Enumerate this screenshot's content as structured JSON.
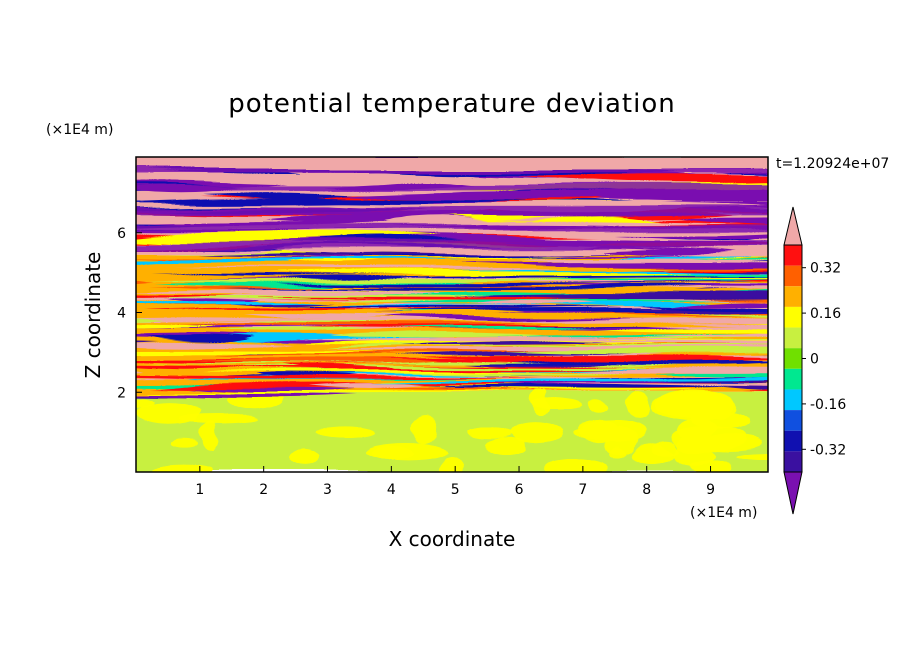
{
  "chart_data": {
    "type": "heatmap",
    "title": "potential temperature deviation",
    "time_label": "t=1.20924e+07",
    "xlabel": "X coordinate",
    "ylabel": "Z coordinate",
    "x_unit": "(×1E4 m)",
    "y_unit": "(×1E4 m)",
    "xlim": [
      0,
      9.9
    ],
    "ylim": [
      0,
      7.9
    ],
    "x_ticks": [
      "1",
      "2",
      "3",
      "4",
      "5",
      "6",
      "7",
      "8",
      "9"
    ],
    "y_ticks": [
      "2",
      "4",
      "6"
    ],
    "colorbar": {
      "levels": [
        -0.48,
        -0.4,
        -0.32,
        -0.24,
        -0.16,
        -0.08,
        0,
        0.08,
        0.16,
        0.24,
        0.32,
        0.4,
        0.48
      ],
      "tick_labels": [
        "-0.32",
        "-0.16",
        "0",
        "0.16",
        "0.32"
      ],
      "colors": [
        "#7a10b0",
        "#3a10a0",
        "#1010b0",
        "#1050e0",
        "#00c8ff",
        "#00e890",
        "#70e000",
        "#c8f040",
        "#ffff00",
        "#ffb000",
        "#ff6000",
        "#ff1010",
        "#f0a8a8"
      ],
      "extend": "both"
    },
    "field_description_zones": [
      {
        "z_range": [
          0,
          2.0
        ],
        "values": [
          0,
          0.08
        ]
      },
      {
        "z_range": [
          2.0,
          5.5
        ],
        "values": [
          -0.48,
          0.48
        ]
      },
      {
        "z_range": [
          5.5,
          7.9
        ],
        "values": [
          -0.48,
          0.48
        ]
      }
    ]
  }
}
